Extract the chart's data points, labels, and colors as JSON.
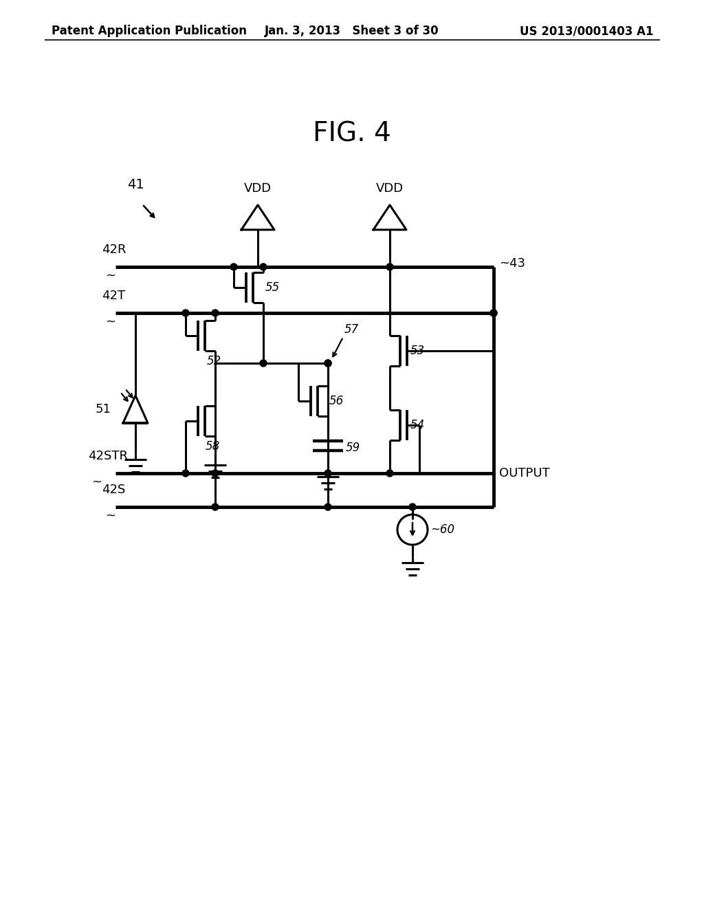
{
  "title": "FIG. 4",
  "header_left": "Patent Application Publication",
  "header_center": "Jan. 3, 2013   Sheet 3 of 30",
  "header_right": "US 2013/0001403 A1",
  "bg_color": "#ffffff",
  "line_color": "#000000",
  "label_41": "41",
  "label_42R": "42R",
  "label_42T": "42T",
  "label_42STR": "42STR",
  "label_42S": "42S",
  "label_43": "43",
  "label_51": "51",
  "label_52": "52",
  "label_53": "53",
  "label_54": "54",
  "label_55": "55",
  "label_56": "56",
  "label_57": "57",
  "label_58": "58",
  "label_59": "59",
  "label_60": "60",
  "label_VDD1": "VDD",
  "label_VDD2": "VDD",
  "label_OUTPUT": "OUTPUT"
}
